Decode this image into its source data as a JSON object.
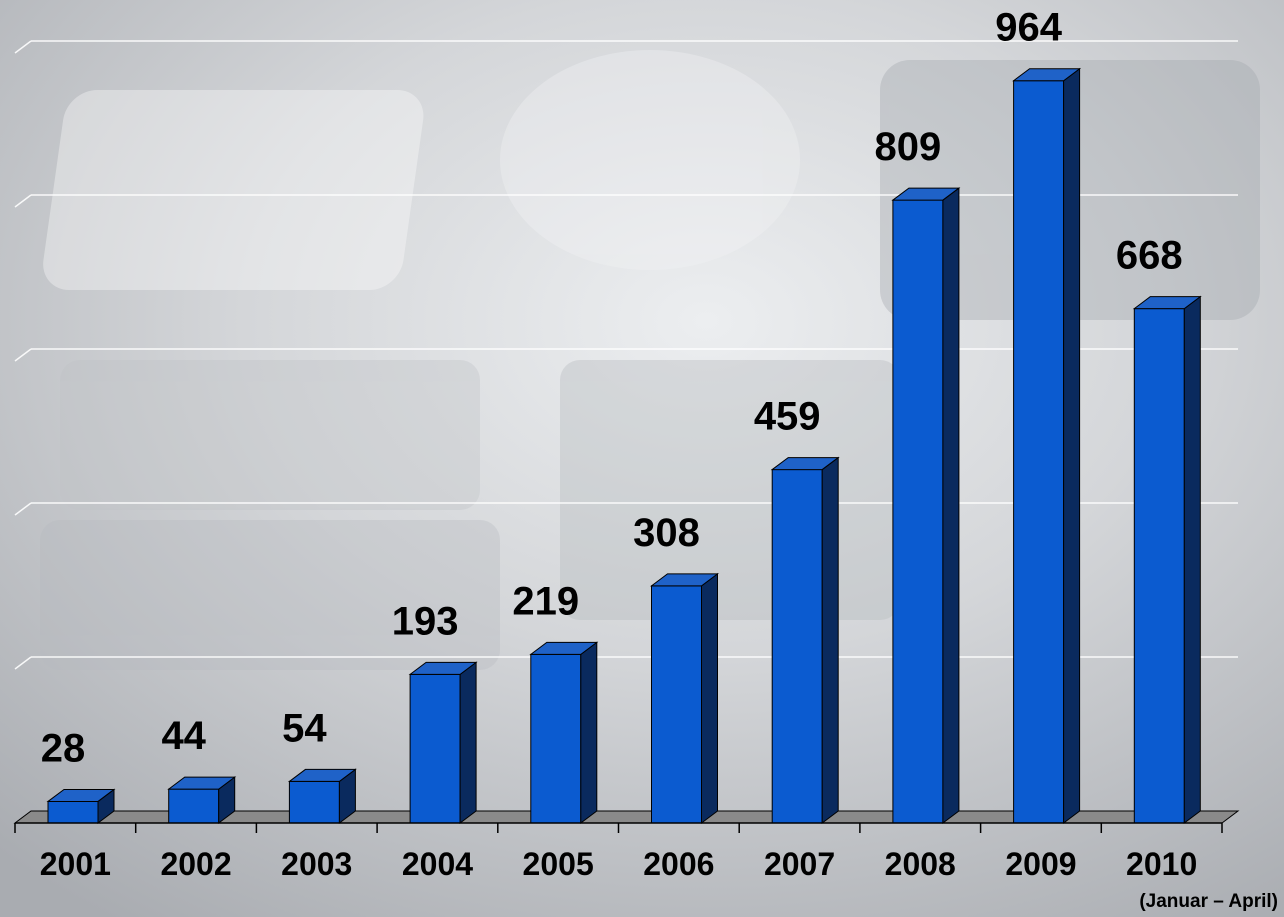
{
  "chart_data": {
    "type": "bar",
    "categories": [
      "2001",
      "2002",
      "2003",
      "2004",
      "2005",
      "2006",
      "2007",
      "2008",
      "2009",
      "2010"
    ],
    "values": [
      28,
      44,
      54,
      193,
      219,
      308,
      459,
      809,
      964,
      668
    ],
    "title": "",
    "xlabel": "",
    "ylabel": "",
    "ylim": [
      0,
      1000
    ],
    "grid": true,
    "legend": "none",
    "three_d": true,
    "footnote": "(Januar – April)",
    "colors": {
      "bar_front": "#0b5bd0",
      "bar_side": "#0a2a5e",
      "bar_top": "#1f62c8",
      "floor": "#8a8a8a",
      "gridline": "#ffffff",
      "label": "#000000"
    }
  }
}
